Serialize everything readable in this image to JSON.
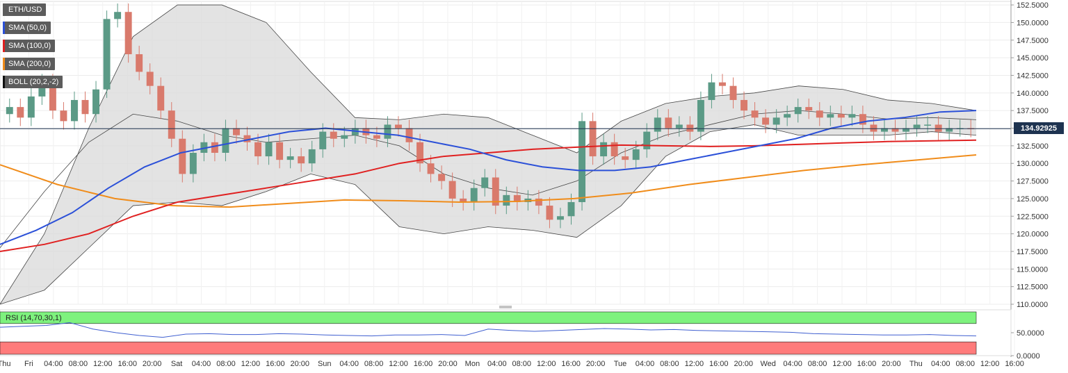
{
  "colors": {
    "up": "#5b9a86",
    "down": "#d97a6c",
    "sma50": "#2b50d8",
    "sma100": "#e02020",
    "sma200": "#f08c1a",
    "boll_fill": "#d9d9d9",
    "boll_line": "#444444",
    "rsi_over": "#7ef27e",
    "rsi_under": "#ff7b7b",
    "rsi_line": "#3f5fd0",
    "price_line": "#1e3350"
  },
  "legend": [
    {
      "label": "ETH/USD",
      "color": "#5c5c5c"
    },
    {
      "label": "SMA (50,0)",
      "color": "#2b50d8"
    },
    {
      "label": "SMA (100,0)",
      "color": "#e02020"
    },
    {
      "label": "SMA (200,0)",
      "color": "#f08c1a"
    },
    {
      "label": "BOLL (20,2,-2)",
      "color": "#111111"
    }
  ],
  "price_tag": "134.92925",
  "rsi_label": "RSI (14,70,30,1)",
  "chart_data": {
    "type": "line",
    "price_axis": {
      "ylim": [
        110,
        153
      ],
      "ticks": [
        "152.5000",
        "150.0000",
        "147.5000",
        "145.0000",
        "142.5000",
        "140.0000",
        "137.5000",
        "135.0000",
        "132.5000",
        "130.0000",
        "127.5000",
        "125.0000",
        "122.5000",
        "120.0000",
        "117.5000",
        "115.0000",
        "112.5000",
        "110.0000"
      ]
    },
    "rsi_axis": {
      "ticks": [
        "50.0000",
        "0.0000"
      ],
      "ylim": [
        0,
        100
      ]
    },
    "x_ticks": [
      "Thu",
      "Fri",
      "04:00",
      "08:00",
      "12:00",
      "16:00",
      "20:00",
      "Sat",
      "04:00",
      "08:00",
      "12:00",
      "16:00",
      "20:00",
      "Sun",
      "04:00",
      "08:00",
      "12:00",
      "16:00",
      "20:00",
      "Mon",
      "04:00",
      "08:00",
      "12:00",
      "16:00",
      "20:00",
      "Tue",
      "04:00",
      "08:00",
      "12:00",
      "16:00",
      "20:00",
      "Wed",
      "04:00",
      "08:00",
      "12:00",
      "16:00",
      "20:00",
      "Thu",
      "04:00",
      "08:00",
      "12:00",
      "16:00"
    ],
    "current_price": 134.92925,
    "close": [
      138.0,
      136.5,
      139.5,
      141.5,
      137.5,
      136.0,
      139.0,
      137.0,
      140.5,
      150.5,
      151.5,
      145.5,
      143.0,
      141.0,
      137.5,
      133.5,
      128.5,
      131.5,
      133.0,
      131.5,
      135.0,
      134.0,
      133.0,
      131.0,
      133.0,
      130.5,
      131.0,
      130.0,
      132.0,
      134.5,
      133.5,
      134.0,
      135.0,
      134.0,
      133.5,
      135.5,
      135.0,
      133.0,
      130.0,
      128.5,
      127.5,
      125.0,
      124.5,
      126.5,
      128.0,
      124.0,
      125.5,
      124.5,
      125.0,
      124.0,
      122.0,
      122.5,
      124.5,
      136.0,
      131.0,
      133.0,
      131.0,
      130.5,
      132.0,
      134.5,
      136.5,
      135.0,
      135.5,
      134.5,
      139.0,
      141.5,
      141.0,
      139.0,
      137.5,
      136.5,
      135.5,
      136.5,
      137.0,
      138.0,
      137.5,
      136.5,
      137.0,
      136.5,
      137.0,
      135.5,
      134.5,
      135.0,
      134.5,
      135.0,
      135.5,
      135.5,
      134.5,
      135.0,
      135.0,
      134.9
    ],
    "sma50": [
      118.5,
      120.5,
      123.0,
      126.5,
      129.5,
      131.5,
      132.5,
      133.5,
      134.5,
      135.0,
      134.5,
      134.0,
      133.0,
      132.0,
      130.5,
      129.5,
      129.0,
      129.0,
      129.5,
      130.5,
      131.5,
      132.5,
      133.5,
      135.0,
      136.0,
      136.5,
      137.3,
      137.5
    ],
    "sma100": [
      117.5,
      118.5,
      120.0,
      122.5,
      124.5,
      125.5,
      126.5,
      127.5,
      128.5,
      130.0,
      131.0,
      131.5,
      132.0,
      132.3,
      132.6,
      132.5,
      132.4,
      132.5,
      132.7,
      132.9,
      133.1,
      133.2,
      133.3
    ],
    "sma200": [
      129.8,
      127.0,
      125.0,
      124.0,
      123.8,
      124.3,
      124.8,
      124.7,
      124.5,
      124.6,
      125.0,
      125.8,
      127.0,
      128.0,
      129.0,
      129.8,
      130.5,
      131.2
    ],
    "boll_upper": [
      110.0,
      120.0,
      135.0,
      148.0,
      152.5,
      152.5,
      150.0,
      143.0,
      136.5,
      136.2,
      137.0,
      136.5,
      134.0,
      131.5,
      136.0,
      138.5,
      139.5,
      140.0,
      141.0,
      140.5,
      139.0,
      138.5,
      137.5
    ],
    "boll_middle": [
      118.0,
      126.0,
      133.0,
      137.0,
      136.0,
      134.0,
      133.0,
      133.5,
      134.0,
      132.5,
      128.5,
      126.5,
      125.5,
      127.5,
      131.5,
      134.0,
      135.5,
      137.0,
      137.5,
      137.0,
      136.3,
      136.5,
      136.2
    ],
    "boll_lower": [
      110.0,
      112.0,
      118.0,
      124.0,
      124.5,
      124.0,
      126.0,
      128.5,
      127.0,
      121.0,
      120.0,
      121.0,
      120.5,
      119.5,
      124.0,
      131.0,
      134.5,
      135.5,
      134.0,
      134.0,
      134.0,
      134.5,
      134.0
    ],
    "rsi": [
      62,
      64,
      66,
      72,
      58,
      50,
      44,
      40,
      47,
      48,
      46,
      46,
      48,
      47,
      45,
      44,
      43,
      45,
      45,
      46,
      44,
      58,
      55,
      53,
      55,
      57,
      59,
      58,
      56,
      57,
      55,
      54,
      53,
      52,
      51,
      48,
      47,
      46,
      45,
      45,
      46,
      44,
      43
    ]
  }
}
